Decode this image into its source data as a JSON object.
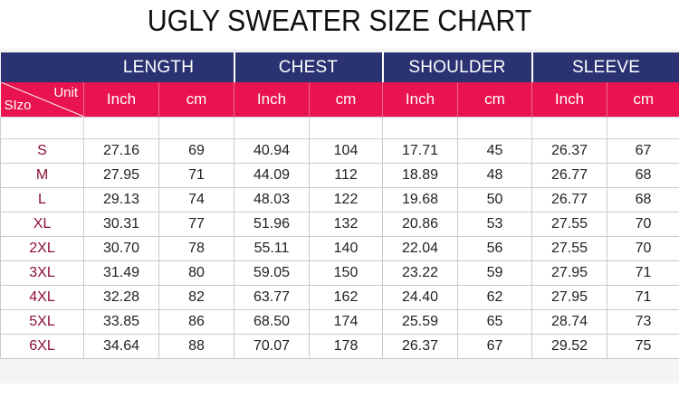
{
  "title": "UGLY SWEATER SIZE CHART",
  "colors": {
    "header_navy": "#2a3272",
    "unit_row_pink": "#e8134f",
    "size_text": "#8a1030"
  },
  "groups": [
    "LENGTH",
    "CHEST",
    "SHOULDER",
    "SLEEVE"
  ],
  "units": [
    "Inch",
    "cm",
    "Inch",
    "cm",
    "Inch",
    "cm",
    "Inch",
    "cm"
  ],
  "corner": {
    "unit": "Unit",
    "size": "SIzo"
  },
  "rows": [
    {
      "size": "S",
      "cells": [
        "27.16",
        "69",
        "40.94",
        "104",
        "17.71",
        "45",
        "26.37",
        "67"
      ]
    },
    {
      "size": "M",
      "cells": [
        "27.95",
        "71",
        "44.09",
        "112",
        "18.89",
        "48",
        "26.77",
        "68"
      ]
    },
    {
      "size": "L",
      "cells": [
        "29.13",
        "74",
        "48.03",
        "122",
        "19.68",
        "50",
        "26.77",
        "68"
      ]
    },
    {
      "size": "XL",
      "cells": [
        "30.31",
        "77",
        "51.96",
        "132",
        "20.86",
        "53",
        "27.55",
        "70"
      ]
    },
    {
      "size": "2XL",
      "cells": [
        "30.70",
        "78",
        "55.11",
        "140",
        "22.04",
        "56",
        "27.55",
        "70"
      ]
    },
    {
      "size": "3XL",
      "cells": [
        "31.49",
        "80",
        "59.05",
        "150",
        "23.22",
        "59",
        "27.95",
        "71"
      ]
    },
    {
      "size": "4XL",
      "cells": [
        "32.28",
        "82",
        "63.77",
        "162",
        "24.40",
        "62",
        "27.95",
        "71"
      ]
    },
    {
      "size": "5XL",
      "cells": [
        "33.85",
        "86",
        "68.50",
        "174",
        "25.59",
        "65",
        "28.74",
        "73"
      ]
    },
    {
      "size": "6XL",
      "cells": [
        "34.64",
        "88",
        "70.07",
        "178",
        "26.37",
        "67",
        "29.52",
        "75"
      ]
    }
  ]
}
